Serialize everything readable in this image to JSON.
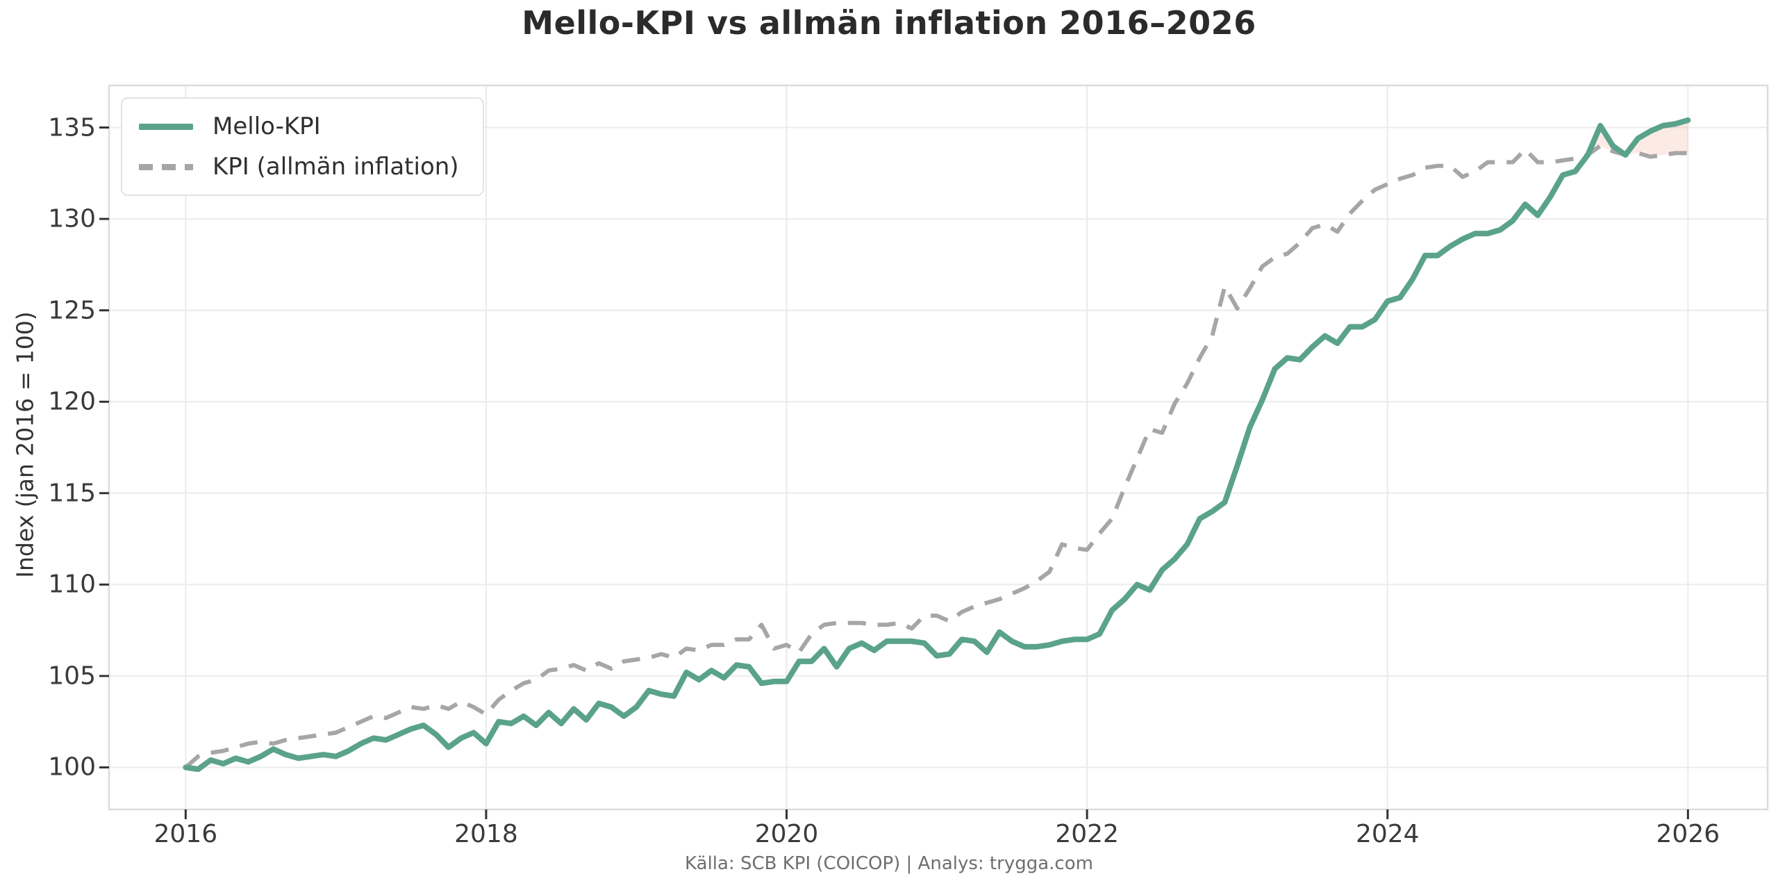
{
  "title": "Mello-KPI vs allmän inflation 2016–2026",
  "footer": "Källa: SCB KPI (COICOP) | Analys: trygga.com",
  "legend": {
    "items": [
      {
        "label": "Mello-KPI",
        "style": "solid",
        "color": "#5aa28b"
      },
      {
        "label": "KPI (allmän inflation)",
        "style": "dashed",
        "color": "#a6a6a6"
      }
    ]
  },
  "colors": {
    "background": "#ffffff",
    "grid": "#ebebeb",
    "plot_border": "#dcdcdc",
    "tick_text": "#3a3a3a",
    "title_text": "#2b2b2b",
    "footer_text": "#6e6e6e",
    "mello_line": "#5aa28b",
    "kpi_line": "#a6a6a6",
    "gap_fill": "#e76b47"
  },
  "chart_data": {
    "type": "line",
    "title": "Mello-KPI vs allmän inflation 2016–2026",
    "xlabel": "",
    "ylabel": "Index (jan 2016 = 100)",
    "x_ticks": [
      2016,
      2018,
      2020,
      2022,
      2024,
      2026
    ],
    "x_tick_labels": [
      "2016",
      "2018",
      "2020",
      "2022",
      "2024",
      "2026"
    ],
    "y_ticks": [
      100,
      105,
      110,
      115,
      120,
      125,
      130,
      135
    ],
    "y_tick_labels": [
      "100",
      "105",
      "110",
      "115",
      "120",
      "125",
      "130",
      "135"
    ],
    "x_domain": [
      2015.49,
      2026.53
    ],
    "y_domain": [
      97.7,
      137.3
    ],
    "grid": true,
    "legend_position": "upper left",
    "start": "2016-01",
    "frequency": "monthly",
    "series": [
      {
        "name": "Mello-KPI",
        "color": "#5aa28b",
        "style": "solid",
        "width": 8,
        "values": [
          100.0,
          99.9,
          100.4,
          100.2,
          100.5,
          100.3,
          100.6,
          101.0,
          100.7,
          100.5,
          100.6,
          100.7,
          100.6,
          100.9,
          101.3,
          101.6,
          101.5,
          101.8,
          102.1,
          102.3,
          101.8,
          101.1,
          101.6,
          101.9,
          101.3,
          102.5,
          102.4,
          102.8,
          102.3,
          103.0,
          102.4,
          103.2,
          102.6,
          103.5,
          103.3,
          102.8,
          103.3,
          104.2,
          104.0,
          103.9,
          105.2,
          104.8,
          105.3,
          104.9,
          105.6,
          105.5,
          104.6,
          104.7,
          104.7,
          105.8,
          105.8,
          106.5,
          105.5,
          106.5,
          106.8,
          106.4,
          106.9,
          106.9,
          106.9,
          106.8,
          106.1,
          106.2,
          107.0,
          106.9,
          106.3,
          107.4,
          106.9,
          106.6,
          106.6,
          106.7,
          106.9,
          107.0,
          107.0,
          107.3,
          108.6,
          109.2,
          110.0,
          109.7,
          110.8,
          111.4,
          112.2,
          113.6,
          114.0,
          114.5,
          116.5,
          118.6,
          120.1,
          121.8,
          122.4,
          122.3,
          123.0,
          123.6,
          123.2,
          124.1,
          124.1,
          124.5,
          125.5,
          125.7,
          126.7,
          128.0,
          128.0,
          128.5,
          128.9,
          129.2,
          129.2,
          129.4,
          129.9,
          130.8,
          130.2,
          131.2,
          132.4,
          132.6,
          133.5,
          135.1,
          134.0,
          133.5,
          134.4,
          134.8,
          135.1,
          135.2,
          135.4
        ]
      },
      {
        "name": "KPI (allmän inflation)",
        "color": "#a6a6a6",
        "style": "dashed",
        "width": 6,
        "values": [
          100.0,
          100.6,
          100.8,
          100.9,
          101.1,
          101.3,
          101.4,
          101.3,
          101.5,
          101.6,
          101.7,
          101.8,
          101.9,
          102.2,
          102.5,
          102.8,
          102.7,
          103.0,
          103.3,
          103.2,
          103.4,
          103.2,
          103.6,
          103.3,
          102.9,
          103.7,
          104.2,
          104.6,
          104.8,
          105.3,
          105.4,
          105.6,
          105.3,
          105.7,
          105.4,
          105.8,
          105.9,
          106.0,
          106.2,
          106.0,
          106.5,
          106.4,
          106.7,
          106.7,
          107.0,
          107.0,
          107.8,
          106.5,
          106.7,
          106.3,
          107.3,
          107.8,
          107.9,
          107.9,
          107.9,
          107.8,
          107.8,
          107.9,
          107.6,
          108.3,
          108.3,
          108.0,
          108.5,
          108.8,
          109.0,
          109.2,
          109.5,
          109.8,
          110.2,
          110.7,
          112.2,
          112.0,
          111.9,
          112.8,
          113.6,
          115.3,
          116.9,
          118.5,
          118.3,
          119.9,
          121.0,
          122.4,
          123.6,
          126.3,
          125.1,
          126.2,
          127.4,
          127.9,
          128.1,
          128.7,
          129.5,
          129.7,
          129.3,
          130.3,
          131.0,
          131.6,
          131.9,
          132.2,
          132.4,
          132.8,
          132.9,
          132.9,
          132.3,
          132.6,
          133.1,
          133.1,
          133.1,
          133.8,
          133.1,
          133.1,
          133.2,
          133.3,
          133.5,
          134.0,
          133.7,
          133.5,
          133.6,
          133.4,
          133.5,
          133.6,
          133.6
        ]
      }
    ],
    "diff_fill": {
      "color": "#e76b47",
      "opacity": 0.14,
      "rule": "where Mello-KPI >= KPI"
    }
  }
}
